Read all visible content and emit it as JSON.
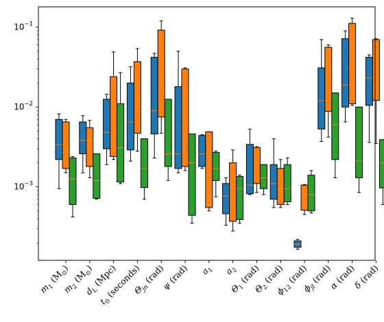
{
  "chart_data": {
    "type": "box",
    "yscale": "log",
    "ylim": [
      0.00012,
      0.18
    ],
    "y_ticks": [
      {
        "value": 0.001,
        "base": "10",
        "exp": "−3"
      },
      {
        "value": 0.01,
        "base": "10",
        "exp": "−2"
      },
      {
        "value": 0.1,
        "base": "10",
        "exp": "−1"
      }
    ],
    "categories": [
      {
        "main": "m",
        "sub": "1",
        "rest": " (M",
        "sub2": "⊙",
        "end": ")"
      },
      {
        "main": "m",
        "sub": "2",
        "rest": " (M",
        "sub2": "⊙",
        "end": ")"
      },
      {
        "main": "d",
        "sub": "L",
        "rest": " (Mpc)",
        "sub2": "",
        "end": ""
      },
      {
        "main": "t",
        "sub": "0",
        "rest": " (seconds)",
        "sub2": "",
        "end": ""
      },
      {
        "main": "Θ",
        "sub": "jn",
        "rest": " (rad)",
        "sub2": "",
        "end": ""
      },
      {
        "main": "ψ",
        "sub": "",
        "rest": " (rad)",
        "sub2": "",
        "end": ""
      },
      {
        "main": "a",
        "sub": "1",
        "rest": "",
        "sub2": "",
        "end": ""
      },
      {
        "main": "a",
        "sub": "2",
        "rest": "",
        "sub2": "",
        "end": ""
      },
      {
        "main": "Θ",
        "sub": "1",
        "rest": " (rad)",
        "sub2": "",
        "end": ""
      },
      {
        "main": "Θ",
        "sub": "2",
        "rest": " (rad)",
        "sub2": "",
        "end": ""
      },
      {
        "main": "ϕ",
        "sub": "12",
        "rest": " (rad)",
        "sub2": "",
        "end": ""
      },
      {
        "main": "ϕ",
        "sub": "jl",
        "rest": " (rad)",
        "sub2": "",
        "end": ""
      },
      {
        "main": "α",
        "sub": "",
        "rest": " (rad)",
        "sub2": "",
        "end": ""
      },
      {
        "main": "δ",
        "sub": "",
        "rest": " (rad)",
        "sub2": "",
        "end": ""
      }
    ],
    "series": [
      {
        "color": "#1f77b4",
        "boxes": [
          {
            "min": 0.00095,
            "q1": 0.0022,
            "median": 0.0034,
            "q3": 0.007,
            "max": 0.0082
          },
          {
            "min": 0.0015,
            "q1": 0.0026,
            "median": 0.0038,
            "q3": 0.0065,
            "max": 0.0078
          },
          {
            "min": 0.0019,
            "q1": 0.003,
            "median": 0.0048,
            "q3": 0.0125,
            "max": 0.0145
          },
          {
            "min": 0.0021,
            "q1": 0.0029,
            "median": 0.0065,
            "q3": 0.02,
            "max": 0.032
          },
          {
            "min": 0.0023,
            "q1": 0.0046,
            "median": 0.009,
            "q3": 0.042,
            "max": 0.047
          },
          {
            "min": 0.0015,
            "q1": 0.0017,
            "median": 0.0026,
            "q3": 0.018,
            "max": 0.05
          },
          {
            "min": 0.0017,
            "q1": 0.0018,
            "median": 0.0026,
            "q3": 0.0044,
            "max": 0.0045
          },
          {
            "min": 0.00033,
            "q1": 0.00046,
            "median": 0.00077,
            "q3": 0.0011,
            "max": 0.0013
          },
          {
            "min": 0.0008,
            "q1": 0.00082,
            "median": 0.00105,
            "q3": 0.0034,
            "max": 0.0053
          },
          {
            "min": 0.00055,
            "q1": 0.0007,
            "median": 0.0011,
            "q3": 0.0019,
            "max": 0.004
          },
          {
            "min": 0.000165,
            "q1": 0.000175,
            "median": 0.00019,
            "q3": 0.00021,
            "max": 0.00022
          },
          {
            "min": 0.0037,
            "q1": 0.0053,
            "median": 0.012,
            "q3": 0.031,
            "max": 0.07
          },
          {
            "min": 0.0065,
            "q1": 0.01,
            "median": 0.019,
            "q3": 0.072,
            "max": 0.09
          },
          {
            "min": 0.0036,
            "q1": 0.0105,
            "median": 0.023,
            "q3": 0.042,
            "max": 0.045
          }
        ]
      },
      {
        "color": "#ff7f0e",
        "boxes": [
          {
            "min": 0.0015,
            "q1": 0.0017,
            "median": 0.0027,
            "q3": 0.0065,
            "max": 0.007
          },
          {
            "min": 0.0013,
            "q1": 0.0018,
            "median": 0.0039,
            "q3": 0.0055,
            "max": 0.0068
          },
          {
            "min": 0.0022,
            "q1": 0.0024,
            "median": 0.004,
            "q3": 0.024,
            "max": 0.049
          },
          {
            "min": 0.0028,
            "q1": 0.0047,
            "median": 0.01,
            "q3": 0.037,
            "max": 0.054
          },
          {
            "min": 0.0047,
            "q1": 0.0075,
            "median": 0.017,
            "q3": 0.092,
            "max": 0.12
          },
          {
            "min": 0.0016,
            "q1": 0.0018,
            "median": 0.0058,
            "q3": 0.03,
            "max": 0.031
          },
          {
            "min": 0.0005,
            "q1": 0.00055,
            "median": 0.0018,
            "q3": 0.0049,
            "max": 0.0049
          },
          {
            "min": 0.00028,
            "q1": 0.00037,
            "median": 0.001,
            "q3": 0.002,
            "max": 0.0029
          },
          {
            "min": 0.00085,
            "q1": 0.0011,
            "median": 0.0022,
            "q3": 0.0031,
            "max": 0.0032
          },
          {
            "min": 0.00055,
            "q1": 0.0006,
            "median": 0.00095,
            "q3": 0.0017,
            "max": 0.0022
          },
          {
            "min": 0.00045,
            "q1": 0.00051,
            "median": 0.00075,
            "q3": 0.00105,
            "max": 0.00107
          },
          {
            "min": 0.0042,
            "q1": 0.0088,
            "median": 0.012,
            "q3": 0.056,
            "max": 0.06
          },
          {
            "min": 0.0105,
            "q1": 0.011,
            "median": 0.03,
            "q3": 0.112,
            "max": 0.13
          },
          {
            "min": 0.0035,
            "q1": 0.0121,
            "median": 0.032,
            "q3": 0.07,
            "max": 0.072
          }
        ]
      },
      {
        "color": "#2ca02c",
        "boxes": [
          {
            "min": 0.00042,
            "q1": 0.0006,
            "median": 0.00125,
            "q3": 0.0023,
            "max": 0.0024
          },
          {
            "min": 0.0007,
            "q1": 0.00072,
            "median": 0.0012,
            "q3": 0.0026,
            "max": 0.0026
          },
          {
            "min": 0.0011,
            "q1": 0.00115,
            "median": 0.0031,
            "q3": 0.011,
            "max": 0.027
          },
          {
            "min": 0.0007,
            "q1": 0.00098,
            "median": 0.0017,
            "q3": 0.004,
            "max": 0.004
          },
          {
            "min": 0.0012,
            "q1": 0.0018,
            "median": 0.0026,
            "q3": 0.0125,
            "max": 0.0125
          },
          {
            "min": 0.00035,
            "q1": 0.00044,
            "median": 0.002,
            "q3": 0.0046,
            "max": 0.0046
          },
          {
            "min": 0.00075,
            "q1": 0.0012,
            "median": 0.0017,
            "q3": 0.0027,
            "max": 0.0028
          },
          {
            "min": 0.00035,
            "q1": 0.00039,
            "median": 0.00095,
            "q3": 0.00135,
            "max": 0.0014
          },
          {
            "min": 0.0008,
            "q1": 0.00095,
            "median": 0.0013,
            "q3": 0.0019,
            "max": 0.0019
          },
          {
            "min": 0.0006,
            "q1": 0.00065,
            "median": 0.00095,
            "q3": 0.0019,
            "max": 0.0023
          },
          {
            "min": 0.00047,
            "q1": 0.0005,
            "median": 0.0008,
            "q3": 0.0014,
            "max": 0.0016
          },
          {
            "min": 0.0013,
            "q1": 0.0022,
            "median": 0.006,
            "q3": 0.015,
            "max": 0.015
          },
          {
            "min": 0.00085,
            "q1": 0.0013,
            "median": 0.0021,
            "q3": 0.01,
            "max": 0.01
          },
          {
            "min": 0.0006,
            "q1": 0.00097,
            "median": 0.002,
            "q3": 0.0039,
            "max": 0.0039
          }
        ]
      }
    ],
    "median_color": "#ff7f0e"
  }
}
